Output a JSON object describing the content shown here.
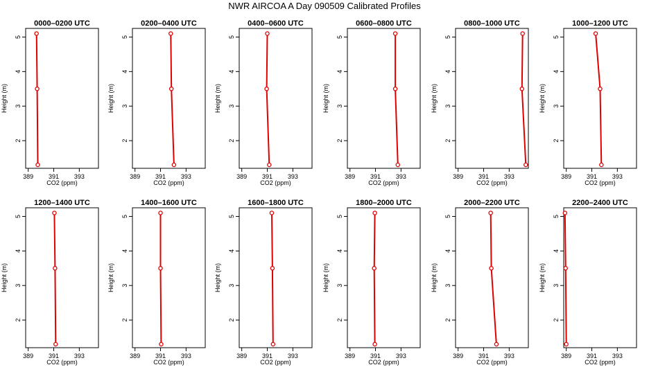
{
  "figure": {
    "title": "NWR AIRCOA A  Day 090509  Calibrated Profiles",
    "line_color": "#e00000"
  },
  "chart_data": [
    {
      "type": "line",
      "title": "0000–0200 UTC",
      "xlabel": "CO2 (ppm)",
      "ylabel": "Height (m)",
      "xlim": [
        388.8,
        394.5
      ],
      "ylim": [
        1.2,
        5.25
      ],
      "xticks": [
        389,
        391,
        393
      ],
      "yticks": [
        2,
        3,
        4,
        5
      ],
      "series": [
        {
          "x": [
            389.75,
            389.7,
            389.65
          ],
          "y": [
            1.3,
            3.5,
            5.1
          ]
        }
      ]
    },
    {
      "type": "line",
      "title": "0200–0400 UTC",
      "xlabel": "CO2 (ppm)",
      "ylabel": "Height (m)",
      "xlim": [
        388.8,
        394.5
      ],
      "ylim": [
        1.2,
        5.25
      ],
      "xticks": [
        389,
        391,
        393
      ],
      "yticks": [
        2,
        3,
        4,
        5
      ],
      "series": [
        {
          "x": [
            392.05,
            391.85,
            391.8
          ],
          "y": [
            1.3,
            3.5,
            5.1
          ]
        }
      ]
    },
    {
      "type": "line",
      "title": "0400–0600 UTC",
      "xlabel": "CO2 (ppm)",
      "ylabel": "Height (m)",
      "xlim": [
        388.8,
        394.5
      ],
      "ylim": [
        1.2,
        5.25
      ],
      "xticks": [
        389,
        391,
        393
      ],
      "yticks": [
        2,
        3,
        4,
        5
      ],
      "series": [
        {
          "x": [
            391.15,
            390.95,
            391.0
          ],
          "y": [
            1.3,
            3.5,
            5.1
          ]
        }
      ]
    },
    {
      "type": "line",
      "title": "0600–0800 UTC",
      "xlabel": "CO2 (ppm)",
      "ylabel": "Height (m)",
      "xlim": [
        388.8,
        394.5
      ],
      "ylim": [
        1.2,
        5.25
      ],
      "xticks": [
        389,
        391,
        393
      ],
      "yticks": [
        2,
        3,
        4,
        5
      ],
      "series": [
        {
          "x": [
            392.75,
            392.55,
            392.55
          ],
          "y": [
            1.3,
            3.5,
            5.1
          ]
        }
      ]
    },
    {
      "type": "line",
      "title": "0800–1000 UTC",
      "xlabel": "CO2 (ppm)",
      "ylabel": "Height (m)",
      "xlim": [
        388.8,
        394.5
      ],
      "ylim": [
        1.2,
        5.25
      ],
      "xticks": [
        389,
        391,
        393
      ],
      "yticks": [
        2,
        3,
        4,
        5
      ],
      "series": [
        {
          "x": [
            394.3,
            394.0,
            394.05
          ],
          "y": [
            1.3,
            3.5,
            5.1
          ]
        }
      ]
    },
    {
      "type": "line",
      "title": "1000–1200 UTC",
      "xlabel": "CO2 (ppm)",
      "ylabel": "Height (m)",
      "xlim": [
        388.8,
        394.5
      ],
      "ylim": [
        1.2,
        5.25
      ],
      "xticks": [
        389,
        391,
        393
      ],
      "yticks": [
        2,
        3,
        4,
        5
      ],
      "series": [
        {
          "x": [
            391.75,
            391.65,
            391.3
          ],
          "y": [
            1.3,
            3.5,
            5.1
          ]
        }
      ]
    },
    {
      "type": "line",
      "title": "1200–1400 UTC",
      "xlabel": "CO2 (ppm)",
      "ylabel": "Height (m)",
      "xlim": [
        388.8,
        394.5
      ],
      "ylim": [
        1.2,
        5.25
      ],
      "xticks": [
        389,
        391,
        393
      ],
      "yticks": [
        2,
        3,
        4,
        5
      ],
      "series": [
        {
          "x": [
            391.15,
            391.1,
            391.05
          ],
          "y": [
            1.3,
            3.5,
            5.1
          ]
        }
      ]
    },
    {
      "type": "line",
      "title": "1400–1600 UTC",
      "xlabel": "CO2 (ppm)",
      "ylabel": "Height (m)",
      "xlim": [
        388.8,
        394.5
      ],
      "ylim": [
        1.2,
        5.25
      ],
      "xticks": [
        389,
        391,
        393
      ],
      "yticks": [
        2,
        3,
        4,
        5
      ],
      "series": [
        {
          "x": [
            391.05,
            391.0,
            391.0
          ],
          "y": [
            1.3,
            3.5,
            5.1
          ]
        }
      ]
    },
    {
      "type": "line",
      "title": "1600–1800 UTC",
      "xlabel": "CO2 (ppm)",
      "ylabel": "Height (m)",
      "xlim": [
        388.8,
        394.5
      ],
      "ylim": [
        1.2,
        5.25
      ],
      "xticks": [
        389,
        391,
        393
      ],
      "yticks": [
        2,
        3,
        4,
        5
      ],
      "series": [
        {
          "x": [
            391.45,
            391.4,
            391.35
          ],
          "y": [
            1.3,
            3.5,
            5.1
          ]
        }
      ]
    },
    {
      "type": "line",
      "title": "1800–2000 UTC",
      "xlabel": "CO2 (ppm)",
      "ylabel": "Height (m)",
      "xlim": [
        388.8,
        394.5
      ],
      "ylim": [
        1.2,
        5.25
      ],
      "xticks": [
        389,
        391,
        393
      ],
      "yticks": [
        2,
        3,
        4,
        5
      ],
      "series": [
        {
          "x": [
            390.95,
            390.9,
            390.95
          ],
          "y": [
            1.3,
            3.5,
            5.1
          ]
        }
      ]
    },
    {
      "type": "line",
      "title": "2000–2200 UTC",
      "xlabel": "CO2 (ppm)",
      "ylabel": "Height (m)",
      "xlim": [
        388.8,
        394.5
      ],
      "ylim": [
        1.2,
        5.25
      ],
      "xticks": [
        389,
        391,
        393
      ],
      "yticks": [
        2,
        3,
        4,
        5
      ],
      "series": [
        {
          "x": [
            392.0,
            391.6,
            391.55
          ],
          "y": [
            1.3,
            3.5,
            5.1
          ]
        }
      ]
    },
    {
      "type": "line",
      "title": "2200–2400 UTC",
      "xlabel": "CO2 (ppm)",
      "ylabel": "Height (m)",
      "xlim": [
        388.8,
        394.5
      ],
      "ylim": [
        1.2,
        5.25
      ],
      "xticks": [
        389,
        391,
        393
      ],
      "yticks": [
        2,
        3,
        4,
        5
      ],
      "series": [
        {
          "x": [
            389.0,
            388.95,
            388.9
          ],
          "y": [
            1.3,
            3.5,
            5.1
          ]
        }
      ]
    }
  ]
}
